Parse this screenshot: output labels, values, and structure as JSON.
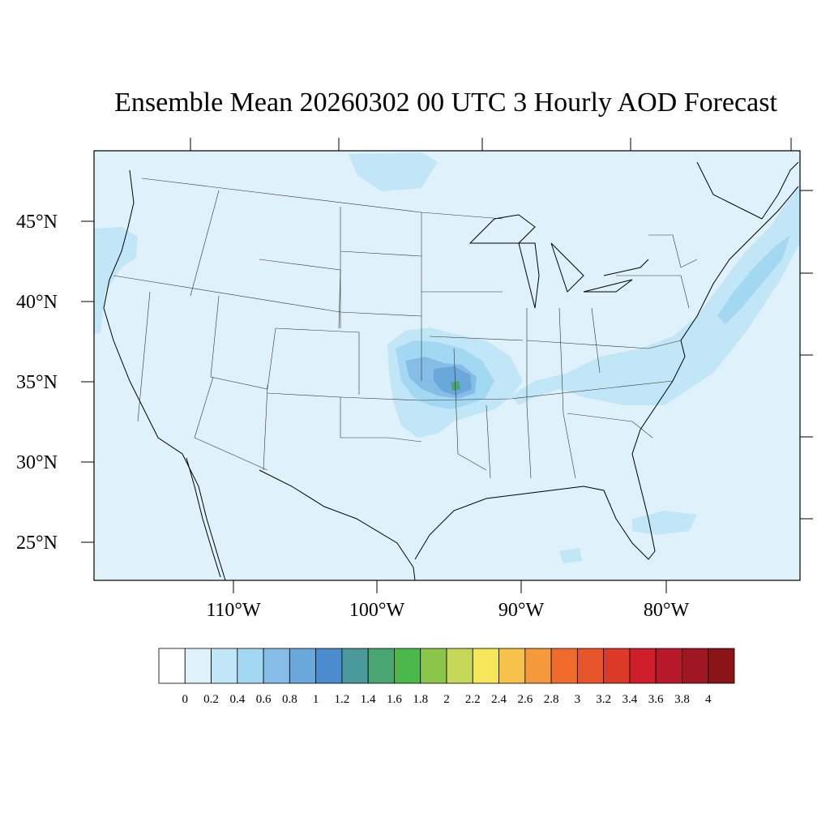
{
  "title": "Ensemble Mean 20260302 00 UTC 3 Hourly AOD Forecast",
  "latitude_labels": [
    "45°N",
    "40°N",
    "35°N",
    "30°N",
    "25°N"
  ],
  "longitude_labels": [
    "110°W",
    "100°W",
    "90°W",
    "80°W"
  ],
  "colorbar": {
    "labels": [
      "0",
      "0.2",
      "0.4",
      "0.6",
      "0.8",
      "1",
      "1.2",
      "1.4",
      "1.6",
      "1.8",
      "2",
      "2.2",
      "2.4",
      "2.6",
      "2.8",
      "3",
      "3.2",
      "3.4",
      "3.6",
      "3.8",
      "4"
    ],
    "colors": [
      "#ffffff",
      "#dff2fb",
      "#c0e6f7",
      "#a3d8f3",
      "#85bde6",
      "#6aa8dc",
      "#4a8ccc",
      "#4a9a9c",
      "#49a571",
      "#4ab84a",
      "#8bc64b",
      "#c5d85a",
      "#f6e65a",
      "#f6c24a",
      "#f4993c",
      "#f06c2c",
      "#e8542a",
      "#dc3a28",
      "#cf1f2a",
      "#b8192a",
      "#a01622",
      "#8a1418"
    ]
  },
  "colors": {
    "ocean_land_background": "#dff2fb",
    "aod_level_1": "#c0e6f7",
    "aod_level_2": "#a3d8f3",
    "aod_level_3": "#85bde6",
    "aod_level_4": "#6aa8dc",
    "aod_level_5": "#49a571",
    "outline": "#000000"
  }
}
